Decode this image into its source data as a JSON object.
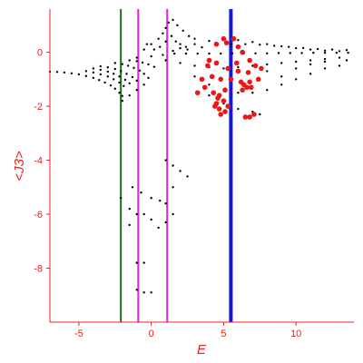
{
  "chart_data": {
    "type": "scatter",
    "xlabel": "E",
    "ylabel": "<J3>",
    "xlim": [
      -7,
      14
    ],
    "ylim": [
      -10,
      1.6
    ],
    "x_ticks": [
      {
        "value": -5,
        "label": "-5"
      },
      {
        "value": 0,
        "label": "0"
      },
      {
        "value": 5,
        "label": "5"
      },
      {
        "value": 10,
        "label": "10"
      }
    ],
    "y_ticks": [
      {
        "value": 0,
        "label": "0"
      },
      {
        "value": -2,
        "label": "-2"
      },
      {
        "value": -4,
        "label": "-4"
      },
      {
        "value": -6,
        "label": "-6"
      },
      {
        "value": -8,
        "label": "-8"
      }
    ],
    "grid": false,
    "vertical_lines": [
      {
        "x": -2.1,
        "color": "#1f6e1f",
        "width": 2
      },
      {
        "x": -0.9,
        "color": "#e51ee5",
        "width": 2
      },
      {
        "x": 1.1,
        "color": "#e51ee5",
        "width": 2
      },
      {
        "x": 5.5,
        "color": "#1515dd",
        "width": 4
      }
    ],
    "series": [
      {
        "color": "#000000",
        "marker_size": 1.2,
        "points": [
          [
            -7.0,
            -0.72
          ],
          [
            -6.5,
            -0.73
          ],
          [
            -6.0,
            -0.75
          ],
          [
            -5.5,
            -0.78
          ],
          [
            -5.0,
            -0.82
          ],
          [
            -4.5,
            -0.88
          ],
          [
            -4.0,
            -0.95
          ],
          [
            -3.6,
            -1.03
          ],
          [
            -3.2,
            -1.12
          ],
          [
            -2.8,
            -1.23
          ],
          [
            -2.5,
            -1.35
          ],
          [
            -2.2,
            -1.5
          ],
          [
            -2.0,
            -1.62
          ],
          [
            -4.5,
            -0.7
          ],
          [
            -4.0,
            -0.75
          ],
          [
            -3.5,
            -0.82
          ],
          [
            -3.0,
            -0.9
          ],
          [
            -2.6,
            -1.0
          ],
          [
            -2.2,
            -1.12
          ],
          [
            -1.9,
            -1.25
          ],
          [
            -4.0,
            -0.6
          ],
          [
            -3.5,
            -0.65
          ],
          [
            -3.0,
            -0.72
          ],
          [
            -2.6,
            -0.8
          ],
          [
            -2.2,
            -0.9
          ],
          [
            -1.8,
            -1.02
          ],
          [
            -1.5,
            -1.15
          ],
          [
            -3.5,
            -0.52
          ],
          [
            -3.0,
            -0.56
          ],
          [
            -2.5,
            -0.62
          ],
          [
            -2.1,
            -0.7
          ],
          [
            -1.7,
            -0.8
          ],
          [
            -1.3,
            -0.92
          ],
          [
            -1.0,
            -1.05
          ],
          [
            -2.5,
            -0.4
          ],
          [
            -2.0,
            -0.44
          ],
          [
            -1.6,
            -0.5
          ],
          [
            -1.2,
            -0.58
          ],
          [
            -0.8,
            -0.68
          ],
          [
            -0.5,
            -0.8
          ],
          [
            -1.5,
            -0.3
          ],
          [
            -1.0,
            -0.33
          ],
          [
            -0.6,
            -0.38
          ],
          [
            -0.2,
            -0.45
          ],
          [
            0.2,
            -0.54
          ],
          [
            -2.0,
            -1.8
          ],
          [
            -1.5,
            -1.6
          ],
          [
            -1.0,
            -1.4
          ],
          [
            -0.5,
            -1.2
          ],
          [
            -0.2,
            -0.95
          ],
          [
            -1.0,
            -0.2
          ],
          [
            -0.5,
            0.1
          ],
          [
            0.0,
            0.3
          ],
          [
            0.5,
            0.5
          ],
          [
            0.8,
            0.7
          ],
          [
            1.0,
            0.9
          ],
          [
            1.2,
            1.1
          ],
          [
            1.5,
            1.2
          ],
          [
            1.8,
            1.0
          ],
          [
            2.2,
            0.8
          ],
          [
            2.6,
            0.6
          ],
          [
            3.0,
            0.5
          ],
          [
            -0.3,
            0.3
          ],
          [
            0.2,
            0.1
          ],
          [
            0.6,
            0.2
          ],
          [
            1.0,
            0.4
          ],
          [
            1.4,
            0.6
          ],
          [
            1.7,
            0.4
          ],
          [
            2.0,
            0.3
          ],
          [
            2.4,
            0.2
          ],
          [
            0.0,
            -0.15
          ],
          [
            0.8,
            -0.1
          ],
          [
            1.6,
            -0.05
          ],
          [
            2.4,
            -0.05
          ],
          [
            3.2,
            -0.05
          ],
          [
            4.0,
            -0.05
          ],
          [
            4.8,
            -0.05
          ],
          [
            5.6,
            -0.04
          ],
          [
            6.4,
            -0.04
          ],
          [
            7.2,
            -0.04
          ],
          [
            8.0,
            -0.04
          ],
          [
            8.8,
            -0.03
          ],
          [
            9.6,
            -0.03
          ],
          [
            10.4,
            -0.03
          ],
          [
            11.2,
            -0.02
          ],
          [
            12.0,
            -0.02
          ],
          [
            12.8,
            -0.02
          ],
          [
            13.6,
            -0.02
          ],
          [
            1.5,
            0.05
          ],
          [
            2.5,
            0.1
          ],
          [
            3.5,
            0.18
          ],
          [
            4.5,
            0.25
          ],
          [
            5.5,
            0.3
          ],
          [
            6.5,
            0.3
          ],
          [
            7.5,
            0.28
          ],
          [
            8.5,
            0.24
          ],
          [
            9.5,
            0.2
          ],
          [
            10.5,
            0.16
          ],
          [
            11.5,
            0.12
          ],
          [
            12.5,
            0.1
          ],
          [
            13.5,
            0.08
          ],
          [
            2.0,
            0.15
          ],
          [
            3.0,
            0.3
          ],
          [
            4.0,
            0.42
          ],
          [
            5.0,
            0.48
          ],
          [
            6.0,
            0.45
          ],
          [
            7.0,
            0.38
          ],
          [
            8.0,
            0.3
          ],
          [
            9.0,
            0.22
          ],
          [
            10.0,
            0.15
          ],
          [
            11.0,
            0.1
          ],
          [
            12.0,
            0.06
          ],
          [
            13.0,
            0.04
          ],
          [
            1.0,
            -0.3
          ],
          [
            2.0,
            -0.4
          ],
          [
            3.0,
            -0.5
          ],
          [
            4.0,
            -0.55
          ],
          [
            5.0,
            -0.6
          ],
          [
            6.0,
            -0.55
          ],
          [
            7.0,
            -0.5
          ],
          [
            8.0,
            -0.45
          ],
          [
            9.0,
            -0.4
          ],
          [
            10.0,
            -0.35
          ],
          [
            11.0,
            -0.3
          ],
          [
            12.0,
            -0.25
          ],
          [
            13.0,
            -0.2
          ],
          [
            3.0,
            -0.9
          ],
          [
            4.0,
            -1.2
          ],
          [
            5.0,
            -1.4
          ],
          [
            6.0,
            -1.5
          ],
          [
            7.0,
            -1.5
          ],
          [
            8.0,
            -1.4
          ],
          [
            9.0,
            -1.2
          ],
          [
            10.0,
            -1.0
          ],
          [
            11.0,
            -0.8
          ],
          [
            12.0,
            -0.6
          ],
          [
            13.0,
            -0.5
          ],
          [
            4.0,
            -1.6
          ],
          [
            5.0,
            -1.9
          ],
          [
            6.0,
            -2.1
          ],
          [
            7.0,
            -2.2
          ],
          [
            7.5,
            -2.3
          ],
          [
            8.0,
            -0.7
          ],
          [
            9.0,
            -0.9
          ],
          [
            10.0,
            -0.6
          ],
          [
            11.0,
            -0.45
          ],
          [
            12.0,
            -0.35
          ],
          [
            13.5,
            -0.3
          ],
          [
            -1.3,
            -5.0
          ],
          [
            -0.7,
            -5.2
          ],
          [
            0.0,
            -5.4
          ],
          [
            0.6,
            -5.5
          ],
          [
            1.0,
            -5.6
          ],
          [
            -2.1,
            -5.4
          ],
          [
            -1.5,
            -5.8
          ],
          [
            -1.0,
            -6.0
          ],
          [
            -0.5,
            -6.0
          ],
          [
            0.0,
            -6.2
          ],
          [
            0.5,
            -6.5
          ],
          [
            1.0,
            -6.3
          ],
          [
            1.5,
            -6.0
          ],
          [
            -1.5,
            -6.4
          ],
          [
            -1.0,
            -7.8
          ],
          [
            -0.5,
            -7.8
          ],
          [
            -1.0,
            -8.8
          ],
          [
            -0.5,
            -8.9
          ],
          [
            0.0,
            -8.9
          ],
          [
            1.0,
            -4.0
          ],
          [
            1.5,
            -4.2
          ],
          [
            2.0,
            -4.4
          ],
          [
            2.5,
            -4.6
          ],
          [
            1.5,
            -5.0
          ]
        ]
      },
      {
        "color": "#ee1515",
        "marker_size": 2.8,
        "points": [
          [
            4.5,
            0.3
          ],
          [
            5.0,
            0.5
          ],
          [
            5.2,
            0.35
          ],
          [
            5.7,
            0.5
          ],
          [
            6.0,
            0.2
          ],
          [
            6.3,
            0.0
          ],
          [
            6.8,
            -0.3
          ],
          [
            7.2,
            -0.5
          ],
          [
            4.0,
            -0.3
          ],
          [
            4.5,
            -0.4
          ],
          [
            5.3,
            -0.6
          ],
          [
            6.0,
            -0.7
          ],
          [
            6.7,
            -0.75
          ],
          [
            4.2,
            -0.9
          ],
          [
            4.8,
            -1.0
          ],
          [
            5.5,
            -1.0
          ],
          [
            6.2,
            -1.1
          ],
          [
            6.8,
            -1.1
          ],
          [
            4.3,
            -1.5
          ],
          [
            4.7,
            -1.6
          ],
          [
            5.1,
            -1.4
          ],
          [
            6.4,
            -1.2
          ],
          [
            6.6,
            -1.3
          ],
          [
            6.3,
            -1.4
          ],
          [
            6.9,
            -1.3
          ],
          [
            4.6,
            -1.7
          ],
          [
            4.5,
            -1.9
          ],
          [
            4.7,
            -2.1
          ],
          [
            5.0,
            -1.8
          ],
          [
            5.3,
            -2.0
          ],
          [
            5.1,
            -2.2
          ],
          [
            4.4,
            -2.0
          ],
          [
            4.8,
            -2.3
          ],
          [
            6.5,
            -2.4
          ],
          [
            6.8,
            -2.4
          ],
          [
            7.1,
            -2.3
          ],
          [
            3.5,
            -1.0
          ],
          [
            3.7,
            -1.3
          ],
          [
            3.2,
            -1.5
          ],
          [
            3.9,
            -0.5
          ],
          [
            5.9,
            -0.4
          ],
          [
            7.4,
            -1.0
          ],
          [
            7.6,
            -0.6
          ]
        ]
      }
    ]
  }
}
